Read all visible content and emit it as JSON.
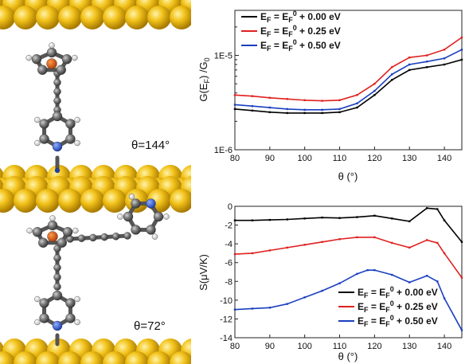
{
  "left_panel": {
    "top_label": "θ=144°",
    "bottom_label": "θ=72°"
  },
  "chart_data": [
    {
      "type": "line",
      "yscale": "log",
      "ylabel": "G(E_F) /G_0",
      "xlabel": "θ (°)",
      "xlim": [
        80,
        145
      ],
      "ylim": [
        1e-06,
        3e-05
      ],
      "x_ticks": [
        80,
        90,
        100,
        110,
        120,
        130,
        140
      ],
      "y_ticks": [
        "1E-6",
        "1E-5"
      ],
      "legend_position": "top-left",
      "series": [
        {
          "name": "E_F = E_F^0 + 0.00 eV",
          "color": "#000000",
          "x": [
            80,
            85,
            90,
            95,
            100,
            105,
            110,
            115,
            120,
            125,
            130,
            135,
            140,
            145
          ],
          "y": [
            2.7e-06,
            2.6e-06,
            2.5e-06,
            2.45e-06,
            2.45e-06,
            2.45e-06,
            2.5e-06,
            2.8e-06,
            3.8e-06,
            5.5e-06,
            7e-06,
            7.5e-06,
            8e-06,
            9e-06
          ]
        },
        {
          "name": "E_F = E_F^0 + 0.25 eV",
          "color": "#e02020",
          "x": [
            80,
            85,
            90,
            95,
            100,
            105,
            110,
            115,
            120,
            125,
            130,
            135,
            140,
            145
          ],
          "y": [
            3.8e-06,
            3.7e-06,
            3.55e-06,
            3.45e-06,
            3.35e-06,
            3.3e-06,
            3.35e-06,
            3.8e-06,
            5e-06,
            7.5e-06,
            9.5e-06,
            1e-05,
            1.15e-05,
            1.55e-05
          ]
        },
        {
          "name": "E_F = E_F^0 + 0.50 eV",
          "color": "#1a3fbf",
          "x": [
            80,
            85,
            90,
            95,
            100,
            105,
            110,
            115,
            120,
            125,
            130,
            135,
            140,
            145
          ],
          "y": [
            3e-06,
            2.9e-06,
            2.8e-06,
            2.7e-06,
            2.65e-06,
            2.65e-06,
            2.7e-06,
            3.1e-06,
            4.2e-06,
            6.3e-06,
            8e-06,
            8.6e-06,
            9.3e-06,
            1.15e-05
          ]
        }
      ]
    },
    {
      "type": "line",
      "ylabel": "S(μV/K)",
      "xlabel": "θ (°)",
      "xlim": [
        80,
        145
      ],
      "ylim": [
        -14,
        0
      ],
      "x_ticks": [
        80,
        90,
        100,
        110,
        120,
        130,
        140
      ],
      "y_ticks": [
        0,
        -2,
        -4,
        -6,
        -8,
        -10,
        -12,
        -14
      ],
      "legend_position": "bottom-right",
      "series": [
        {
          "name": "E_F = E_F^0 + 0.00 eV",
          "color": "#000000",
          "x": [
            80,
            85,
            90,
            95,
            100,
            105,
            110,
            115,
            120,
            125,
            130,
            135,
            138,
            140,
            145
          ],
          "y": [
            -1.5,
            -1.5,
            -1.45,
            -1.4,
            -1.3,
            -1.2,
            -1.25,
            -1.15,
            -1.0,
            -1.3,
            -1.6,
            -0.2,
            -0.3,
            -1.5,
            -3.8
          ]
        },
        {
          "name": "E_F = E_F^0 + 0.25 eV",
          "color": "#e02020",
          "x": [
            80,
            85,
            90,
            95,
            100,
            105,
            110,
            115,
            120,
            125,
            130,
            135,
            138,
            140,
            145
          ],
          "y": [
            -5.1,
            -5.0,
            -4.7,
            -4.4,
            -4.1,
            -3.8,
            -3.5,
            -3.3,
            -3.3,
            -3.9,
            -4.4,
            -3.6,
            -3.9,
            -5.0,
            -7.6
          ]
        },
        {
          "name": "E_F = E_F^0 + 0.50 eV",
          "color": "#1a3fbf",
          "x": [
            80,
            85,
            90,
            95,
            100,
            105,
            110,
            115,
            118,
            120,
            125,
            130,
            135,
            138,
            140,
            145
          ],
          "y": [
            -11.0,
            -10.9,
            -10.8,
            -10.4,
            -9.7,
            -9.0,
            -8.2,
            -7.2,
            -6.8,
            -6.8,
            -7.3,
            -8.1,
            -7.4,
            -8.0,
            -9.8,
            -13.2
          ]
        }
      ]
    }
  ]
}
